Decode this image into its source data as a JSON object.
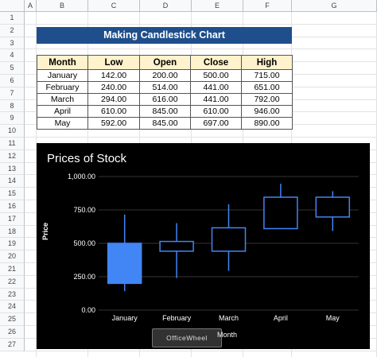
{
  "columns": [
    "A",
    "B",
    "C",
    "D",
    "E",
    "F",
    "G"
  ],
  "rows": [
    "1",
    "2",
    "3",
    "4",
    "5",
    "6",
    "7",
    "8",
    "9",
    "10",
    "11",
    "12",
    "13",
    "14",
    "15",
    "16",
    "17",
    "18",
    "19",
    "20",
    "21",
    "22",
    "23",
    "24",
    "25",
    "26",
    "27"
  ],
  "sheet_title": "Making Candlestick Chart",
  "table": {
    "headers": [
      "Month",
      "Low",
      "Open",
      "Close",
      "High"
    ],
    "rows": [
      [
        "January",
        "142.00",
        "200.00",
        "500.00",
        "715.00"
      ],
      [
        "February",
        "240.00",
        "514.00",
        "441.00",
        "651.00"
      ],
      [
        "March",
        "294.00",
        "616.00",
        "441.00",
        "792.00"
      ],
      [
        "April",
        "610.00",
        "845.00",
        "610.00",
        "946.00"
      ],
      [
        "May",
        "592.00",
        "845.00",
        "697.00",
        "890.00"
      ]
    ]
  },
  "chart_data": {
    "type": "candlestick",
    "title": "Prices of Stock",
    "xlabel": "Month",
    "ylabel": "Price",
    "categories": [
      "January",
      "February",
      "March",
      "April",
      "May"
    ],
    "low": [
      142,
      240,
      294,
      610,
      592
    ],
    "open": [
      200,
      514,
      616,
      845,
      845
    ],
    "close": [
      500,
      441,
      441,
      610,
      697
    ],
    "high": [
      715,
      651,
      792,
      946,
      890
    ],
    "ylim": [
      0,
      1000
    ],
    "yticks": [
      "0.00",
      "250.00",
      "500.00",
      "750.00",
      "1,000.00"
    ],
    "colors": {
      "rising": "#4285f4",
      "falling_fill": "#000000",
      "border": "#4285f4",
      "background": "#000000",
      "text": "#ffffff",
      "grid": "#333333"
    }
  },
  "watermark": "OfficeWheel"
}
